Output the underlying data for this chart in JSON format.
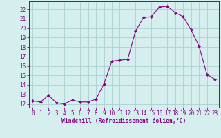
{
  "x": [
    0,
    1,
    2,
    3,
    4,
    5,
    6,
    7,
    8,
    9,
    10,
    11,
    12,
    13,
    14,
    15,
    16,
    17,
    18,
    19,
    20,
    21,
    22,
    23
  ],
  "y": [
    12.3,
    12.2,
    12.9,
    12.1,
    12.0,
    12.4,
    12.2,
    12.2,
    12.5,
    14.1,
    16.5,
    16.6,
    16.7,
    19.7,
    21.1,
    21.2,
    22.2,
    22.3,
    21.6,
    21.2,
    19.8,
    18.1,
    15.1,
    14.6
  ],
  "line_color": "#880088",
  "marker": "D",
  "marker_size": 2.0,
  "bg_color": "#d5efef",
  "grid_color": "#aacfcf",
  "xlabel": "Windchill (Refroidissement éolien,°C)",
  "xlabel_color": "#880088",
  "tick_color": "#880088",
  "ylim": [
    11.6,
    22.8
  ],
  "yticks": [
    12,
    13,
    14,
    15,
    16,
    17,
    18,
    19,
    20,
    21,
    22
  ],
  "xlim": [
    -0.5,
    23.5
  ],
  "xticks": [
    0,
    1,
    2,
    3,
    4,
    5,
    6,
    7,
    8,
    9,
    10,
    11,
    12,
    13,
    14,
    15,
    16,
    17,
    18,
    19,
    20,
    21,
    22,
    23
  ],
  "tick_fontsize": 5.5,
  "xlabel_fontsize": 5.8
}
